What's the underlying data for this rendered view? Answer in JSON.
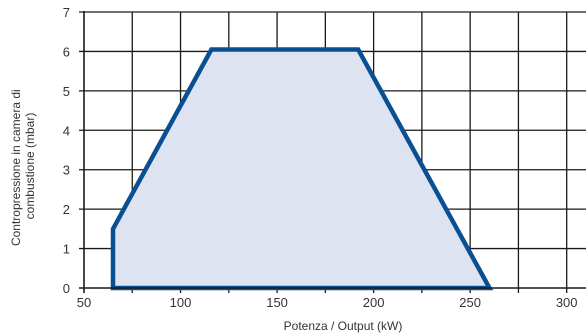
{
  "chart_data": {
    "type": "area",
    "title": "",
    "xlabel": "Potenza / Output (kW)",
    "ylabel_lines": [
      "Contropressione in camera di",
      "combustione (mbar)"
    ],
    "xlim": [
      50,
      310
    ],
    "ylim": [
      0,
      7
    ],
    "x_ticks": [
      50,
      100,
      150,
      200,
      250,
      300
    ],
    "y_ticks": [
      0,
      1,
      2,
      3,
      4,
      5,
      6,
      7
    ],
    "x_grid_step": 25,
    "y_grid_step": 1,
    "grid": true,
    "series": [
      {
        "points": [
          {
            "x": 65,
            "y": 0
          },
          {
            "x": 65,
            "y": 1.5
          },
          {
            "x": 116,
            "y": 6.05
          },
          {
            "x": 192,
            "y": 6.05
          },
          {
            "x": 260,
            "y": 0
          }
        ],
        "fill": "#dde3f1",
        "stroke": "#0a4f92"
      }
    ],
    "colors": {
      "grid": "#1a1a1a",
      "axis": "#1a1a1a",
      "text": "#333333"
    }
  }
}
